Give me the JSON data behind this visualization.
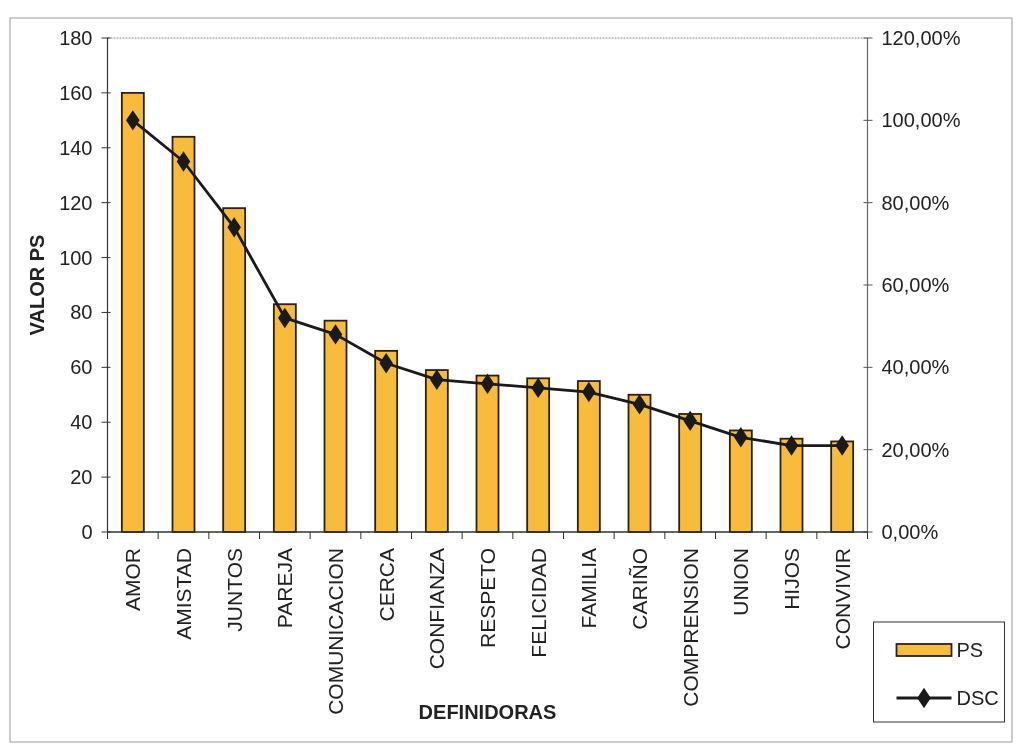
{
  "chart_data": {
    "type": "bar",
    "xlabel": "DEFINIDORAS",
    "ylabel": "VALOR PS",
    "categories": [
      "AMOR",
      "AMISTAD",
      "JUNTOS",
      "PAREJA",
      "COMUNICACION",
      "CERCA",
      "CONFIANZA",
      "RESPETO",
      "FELICIDAD",
      "FAMILIA",
      "CARIÑO",
      "COMPRENSION",
      "UNION",
      "HIJOS",
      "CONVIVIR"
    ],
    "series": [
      {
        "name": "PS",
        "color": "#f7bc3c",
        "values": [
          160,
          144,
          118,
          83,
          77,
          66,
          59,
          57,
          56,
          55,
          50,
          43,
          37,
          34,
          33
        ]
      },
      {
        "name": "DSC",
        "type": "line",
        "axis": "y2",
        "color": "#1a1a1a",
        "values": [
          100,
          90,
          74,
          52,
          48,
          41,
          37,
          36,
          35,
          34,
          31,
          27,
          23,
          21,
          21
        ]
      }
    ],
    "ylim": [
      0,
      180
    ],
    "yticks": [
      0,
      20,
      40,
      60,
      80,
      100,
      120,
      140,
      160,
      180
    ],
    "y2lim": [
      0,
      120
    ],
    "y2ticks": [
      {
        "value": 0,
        "label": "0,00%"
      },
      {
        "value": 20,
        "label": "20,00%"
      },
      {
        "value": 40,
        "label": "40,00%"
      },
      {
        "value": 60,
        "label": "60,00%"
      },
      {
        "value": 80,
        "label": "80,00%"
      },
      {
        "value": 100,
        "label": "100,00%"
      },
      {
        "value": 120,
        "label": "120,00%"
      }
    ],
    "legend": "bottom right",
    "marker": "diamond",
    "line_style": "solid"
  }
}
